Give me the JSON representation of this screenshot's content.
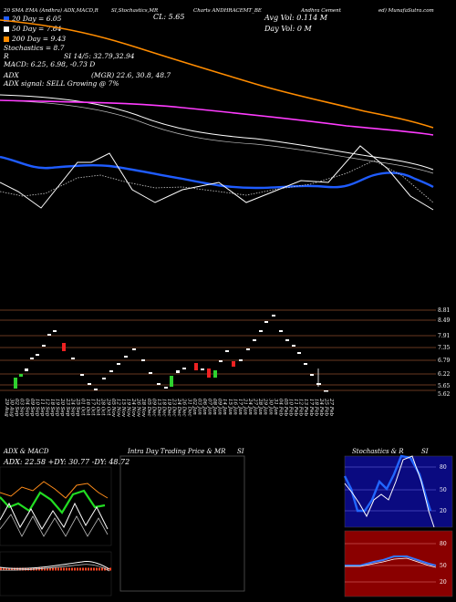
{
  "header": {
    "row1_left": "20 SMA EMA (Andhra) ADX,MACD,R",
    "row1_mid1": "SI,Stochastics,MR",
    "row1_mid2": "CL: 5.65",
    "row1_mid3": "Charts ANDHRACEMT_BE",
    "row1_mid4": "Andhra Cement",
    "row1_right": "ed) MunafaSutra.com",
    "avg_vol": "Avg Vol: 0.114 M",
    "day_vol": "Day Vol: 0   M",
    "sma20": "20 Day = 6.05",
    "sma50": "50 Day = 7.64",
    "sma200": "200 Day = 9.43",
    "stoch": "Stochastics = 8.7",
    "rsi_r": "R",
    "rsi": "SI 14/5: 32.79,32.94",
    "macd": "MACD: 6.25, 6.98, -0.73 D",
    "adx_a": "ADX",
    "adx": "(MGR) 22.6, 30.8, 48.7",
    "adx_signal": "ADX  signal: SELL  Growing @ 7%",
    "colors": {
      "sma20": "#1f5cff",
      "sma50": "#ffffff",
      "sma200": "#ff8c00"
    }
  },
  "price_axis": [
    "8.81",
    "8.49",
    "7.91",
    "7.35",
    "6.79",
    "6.22",
    "5.65",
    "5.62"
  ],
  "dates": [
    "29 Aug",
    "30 Aug",
    "02 Sep",
    "03 Sep",
    "04 Sep",
    "09 Sep",
    "10 Sep",
    "11 Sep",
    "12 Sep",
    "18 Sep",
    "19 Sep",
    "20 Sep",
    "23 Sep",
    "24 Sep",
    "25 Sep",
    "01 Oct",
    "16 Oct",
    "17 Oct",
    "22 Oct",
    "28 Oct",
    "29 Oct",
    "05 Nov",
    "12 Nov",
    "15 Nov",
    "19 Nov",
    "24 Nov",
    "26 Nov",
    "28 Nov",
    "05 Dec",
    "09 Dec",
    "13 Dec",
    "18 Dec",
    "19 Dec",
    "23 Dec",
    "24 Dec",
    "26 Dec",
    "31 Dec",
    "02 Jan",
    "03 Jan",
    "06 Jan",
    "07 Jan",
    "08 Jan",
    "09 Jan",
    "14 Jan",
    "15 Jan",
    "16 Jan",
    "17 Jan",
    "21 Jan",
    "24 Jan",
    "27 Jan",
    "28 Jan",
    "29 Jan",
    "30 Jan",
    "31 Jan",
    "04 Feb",
    "05 Feb",
    "10 Feb",
    "11 Feb",
    "12 Feb",
    "13 Feb",
    "17 Feb",
    "18 Feb",
    "24 Feb",
    "25 Feb",
    "27 Feb"
  ],
  "panels": {
    "adx_title": "ADX  & MACD",
    "adx_values": "ADX: 22.58  +DY: 30.77  -DY: 48.72",
    "intra_title": "Intra  Day Trading Price  & MR",
    "intra_si": "SI",
    "stoch_title": "Stochastics & R",
    "stoch_si": "SI",
    "stoch_levels": [
      "80",
      "50",
      "20"
    ],
    "rsi_levels": [
      "80",
      "50",
      "20"
    ]
  }
}
